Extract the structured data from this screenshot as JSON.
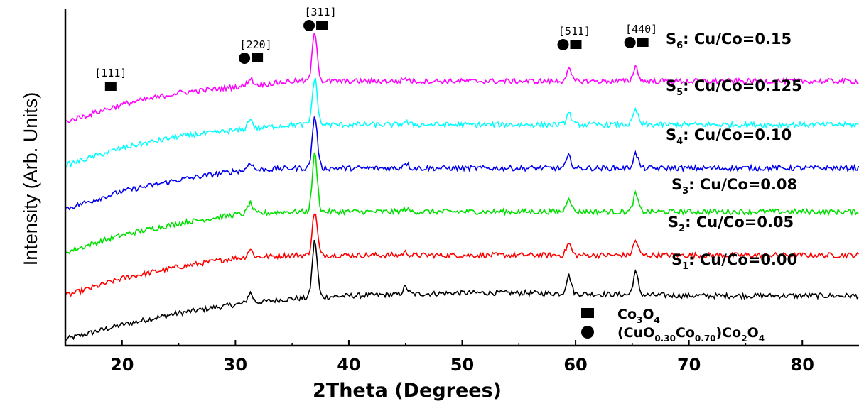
{
  "chart_data": {
    "type": "line",
    "xlabel": "2Theta (Degrees)",
    "ylabel": "Intensity (Arb. Units)",
    "xlim": [
      15,
      85
    ],
    "xticks": [
      "20",
      "30",
      "40",
      "50",
      "60",
      "70",
      "80"
    ],
    "xtick_values": [
      20,
      30,
      40,
      50,
      60,
      70,
      80
    ],
    "series": [
      {
        "label_main": "S",
        "label_sub": "1",
        "label_rest": ": Cu/Co=0.00",
        "ratio": 0.0,
        "color": "#000000",
        "x": [
          15,
          20,
          25,
          30,
          31.3,
          35,
          37.0,
          40,
          45.0,
          50,
          55,
          59.4,
          65.3,
          70,
          75,
          80,
          85
        ],
        "y": [
          0.0,
          0.05,
          0.09,
          0.12,
          0.16,
          0.14,
          0.34,
          0.15,
          0.18,
          0.16,
          0.16,
          0.22,
          0.23,
          0.15,
          0.15,
          0.15,
          0.15
        ]
      },
      {
        "label_main": "S",
        "label_sub": "2",
        "label_rest": ": Cu/Co=0.05",
        "ratio": 0.05,
        "color": "#ff0000",
        "x": [
          15,
          20,
          25,
          30,
          31.3,
          35,
          37.0,
          40,
          45.0,
          50,
          55,
          59.4,
          65.3,
          70,
          75,
          80,
          85
        ],
        "y": [
          0.15,
          0.21,
          0.25,
          0.28,
          0.31,
          0.29,
          0.44,
          0.29,
          0.3,
          0.29,
          0.29,
          0.33,
          0.34,
          0.29,
          0.29,
          0.29,
          0.29
        ]
      },
      {
        "label_main": "S",
        "label_sub": "3",
        "label_rest": ": Cu/Co=0.08",
        "ratio": 0.08,
        "color": "#00e000",
        "x": [
          15,
          20,
          25,
          30,
          31.3,
          35,
          37.0,
          40,
          45.0,
          50,
          55,
          59.4,
          65.3,
          70,
          75,
          80,
          85
        ],
        "y": [
          0.3,
          0.36,
          0.4,
          0.43,
          0.47,
          0.44,
          0.64,
          0.44,
          0.45,
          0.44,
          0.44,
          0.49,
          0.5,
          0.44,
          0.44,
          0.44,
          0.44
        ]
      },
      {
        "label_main": "S",
        "label_sub": "4",
        "label_rest": ": Cu/Co=0.10",
        "ratio": 0.1,
        "color": "#0000ee",
        "x": [
          15,
          20,
          25,
          30,
          31.3,
          35,
          37.0,
          40,
          45.0,
          50,
          55,
          59.4,
          65.3,
          70,
          75,
          80,
          85
        ],
        "y": [
          0.45,
          0.51,
          0.55,
          0.58,
          0.61,
          0.59,
          0.77,
          0.59,
          0.61,
          0.59,
          0.59,
          0.63,
          0.64,
          0.59,
          0.59,
          0.59,
          0.59
        ]
      },
      {
        "label_main": "S",
        "label_sub": "5",
        "label_rest": ": Cu/Co=0.125",
        "ratio": 0.125,
        "color": "#00ffff",
        "x": [
          15,
          20,
          25,
          30,
          31.3,
          35,
          37.0,
          40,
          45.0,
          50,
          55,
          59.4,
          65.3,
          70,
          75,
          80,
          85
        ],
        "y": [
          0.6,
          0.66,
          0.7,
          0.72,
          0.76,
          0.74,
          0.9,
          0.74,
          0.75,
          0.74,
          0.74,
          0.78,
          0.79,
          0.74,
          0.74,
          0.74,
          0.74
        ]
      },
      {
        "label_main": "S",
        "label_sub": "6",
        "label_rest": ": Cu/Co=0.15",
        "ratio": 0.15,
        "color": "#ff00ff",
        "x": [
          15,
          20,
          25,
          30,
          31.3,
          35,
          37.0,
          40,
          45.0,
          50,
          55,
          59.4,
          65.3,
          70,
          75,
          80,
          85
        ],
        "y": [
          0.75,
          0.81,
          0.85,
          0.87,
          0.9,
          0.89,
          1.06,
          0.89,
          0.9,
          0.89,
          0.89,
          0.93,
          0.94,
          0.89,
          0.89,
          0.89,
          0.89
        ]
      }
    ],
    "peak_annotations": [
      {
        "label": "[111]",
        "x": 19.0,
        "markers": [
          "square"
        ]
      },
      {
        "label": "[220]",
        "x": 31.3,
        "markers": [
          "circle",
          "square"
        ]
      },
      {
        "label": "[311]",
        "x": 37.0,
        "markers": [
          "circle",
          "square"
        ]
      },
      {
        "label": "[511]",
        "x": 59.4,
        "markers": [
          "circle",
          "square"
        ]
      },
      {
        "label": "[440]",
        "x": 65.3,
        "markers": [
          "circle",
          "square"
        ]
      }
    ],
    "legend": [
      {
        "marker": "square",
        "parts": [
          [
            "Co",
            ""
          ],
          [
            "3",
            "sub"
          ],
          [
            "O",
            ""
          ],
          [
            "4",
            "sub"
          ]
        ]
      },
      {
        "marker": "circle",
        "parts": [
          [
            "(CuO",
            ""
          ],
          [
            "0.30",
            "sub"
          ],
          [
            "Co",
            ""
          ],
          [
            "0.70",
            "sub"
          ],
          [
            ")Co",
            ""
          ],
          [
            "2",
            "sub"
          ],
          [
            "O",
            ""
          ],
          [
            "4",
            "sub"
          ]
        ]
      }
    ],
    "legend_position": "bottom-right",
    "grid": false
  }
}
